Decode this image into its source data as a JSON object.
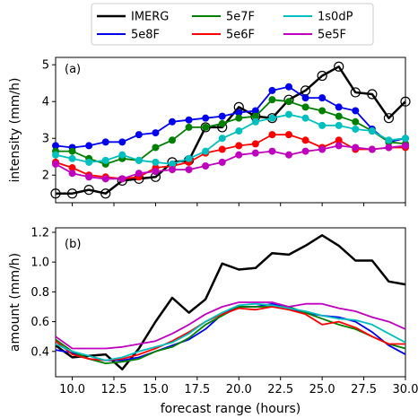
{
  "chart_data": {
    "type": "line",
    "legend": {
      "placement": "top-center",
      "entries": [
        "IMERG",
        "5e8F",
        "5e7F",
        "5e6F",
        "1s0dP",
        "5e5F"
      ]
    },
    "colors": {
      "IMERG": "#000000",
      "5e8F": "#0000ee",
      "5e7F": "#008000",
      "5e6F": "#ff0000",
      "1s0dP": "#00bfbf",
      "5e5F": "#bf00bf"
    },
    "xlabel": "forecast range (hours)",
    "xlim": [
      9,
      30
    ],
    "xticks": [
      "10.0",
      "12.5",
      "15.0",
      "17.5",
      "20.0",
      "22.5",
      "25.0",
      "27.5",
      "30.0"
    ],
    "x": [
      9,
      10,
      11,
      12,
      13,
      14,
      15,
      16,
      17,
      18,
      19,
      20,
      21,
      22,
      23,
      24,
      25,
      26,
      27,
      28,
      29,
      30
    ],
    "panels": [
      {
        "label": "(a)",
        "ylabel": "intensity (mm/h)",
        "ylim": [
          1.25,
          5.2
        ],
        "yticks": [
          "2",
          "3",
          "4",
          "5"
        ],
        "series": [
          {
            "name": "IMERG",
            "values": [
              1.5,
              1.5,
              1.6,
              1.5,
              1.85,
              1.9,
              1.95,
              2.35,
              2.4,
              3.3,
              3.3,
              3.85,
              3.6,
              3.55,
              4.05,
              4.3,
              4.7,
              4.95,
              4.25,
              4.2,
              3.55,
              4.0
            ]
          },
          {
            "name": "5e8F",
            "values": [
              2.8,
              2.75,
              2.8,
              2.9,
              2.9,
              3.1,
              3.15,
              3.45,
              3.5,
              3.55,
              3.6,
              3.7,
              3.75,
              4.3,
              4.4,
              4.1,
              4.1,
              3.85,
              3.75,
              3.25,
              2.9,
              3.0
            ]
          },
          {
            "name": "5e7F",
            "values": [
              2.65,
              2.65,
              2.45,
              2.3,
              2.45,
              2.4,
              2.75,
              2.95,
              3.3,
              3.3,
              3.4,
              3.55,
              3.6,
              4.05,
              4.0,
              3.85,
              3.75,
              3.6,
              3.45,
              3.2,
              2.9,
              2.85
            ]
          },
          {
            "name": "5e6F",
            "values": [
              2.35,
              2.2,
              2.0,
              1.95,
              1.9,
              1.95,
              2.2,
              2.25,
              2.35,
              2.6,
              2.7,
              2.8,
              2.85,
              3.1,
              3.1,
              2.95,
              2.75,
              2.95,
              2.7,
              2.7,
              2.75,
              2.75
            ]
          },
          {
            "name": "1s0dP",
            "values": [
              2.55,
              2.45,
              2.35,
              2.4,
              2.55,
              2.4,
              2.35,
              2.3,
              2.45,
              2.65,
              3.0,
              3.2,
              3.45,
              3.55,
              3.65,
              3.55,
              3.35,
              3.35,
              3.25,
              3.2,
              2.95,
              3.0
            ]
          },
          {
            "name": "5e5F",
            "values": [
              2.3,
              2.05,
              1.95,
              1.9,
              1.9,
              2.05,
              2.1,
              2.15,
              2.15,
              2.25,
              2.35,
              2.55,
              2.6,
              2.65,
              2.55,
              2.65,
              2.7,
              2.8,
              2.75,
              2.7,
              2.75,
              2.8
            ]
          }
        ]
      },
      {
        "label": "(b)",
        "ylabel": "amount (mm/h)",
        "ylim": [
          0.23,
          1.23
        ],
        "yticks": [
          "0.4",
          "0.6",
          "0.8",
          "1.0",
          "1.2"
        ],
        "series": [
          {
            "name": "IMERG",
            "values": [
              0.44,
              0.36,
              0.37,
              0.38,
              0.28,
              0.42,
              0.6,
              0.76,
              0.66,
              0.75,
              0.99,
              0.95,
              0.96,
              1.06,
              1.05,
              1.11,
              1.18,
              1.11,
              1.01,
              1.01,
              0.87,
              0.85
            ]
          },
          {
            "name": "5e8F",
            "values": [
              0.41,
              0.39,
              0.35,
              0.34,
              0.34,
              0.36,
              0.4,
              0.44,
              0.48,
              0.55,
              0.65,
              0.7,
              0.7,
              0.72,
              0.69,
              0.66,
              0.64,
              0.63,
              0.6,
              0.53,
              0.44,
              0.38
            ]
          },
          {
            "name": "5e7F",
            "values": [
              0.48,
              0.4,
              0.35,
              0.32,
              0.33,
              0.35,
              0.4,
              0.43,
              0.49,
              0.58,
              0.64,
              0.7,
              0.7,
              0.7,
              0.7,
              0.66,
              0.62,
              0.58,
              0.55,
              0.5,
              0.45,
              0.42
            ]
          },
          {
            "name": "5e6F",
            "values": [
              0.47,
              0.38,
              0.35,
              0.34,
              0.35,
              0.38,
              0.42,
              0.47,
              0.53,
              0.6,
              0.65,
              0.69,
              0.68,
              0.7,
              0.68,
              0.65,
              0.58,
              0.6,
              0.56,
              0.5,
              0.45,
              0.45
            ]
          },
          {
            "name": "1s0dP",
            "values": [
              0.45,
              0.4,
              0.37,
              0.34,
              0.36,
              0.4,
              0.43,
              0.46,
              0.52,
              0.6,
              0.66,
              0.71,
              0.72,
              0.71,
              0.69,
              0.67,
              0.64,
              0.62,
              0.61,
              0.58,
              0.52,
              0.46
            ]
          },
          {
            "name": "5e5F",
            "values": [
              0.5,
              0.42,
              0.42,
              0.42,
              0.43,
              0.45,
              0.47,
              0.52,
              0.58,
              0.65,
              0.7,
              0.73,
              0.73,
              0.73,
              0.7,
              0.72,
              0.72,
              0.69,
              0.67,
              0.63,
              0.6,
              0.55
            ]
          }
        ]
      }
    ]
  }
}
